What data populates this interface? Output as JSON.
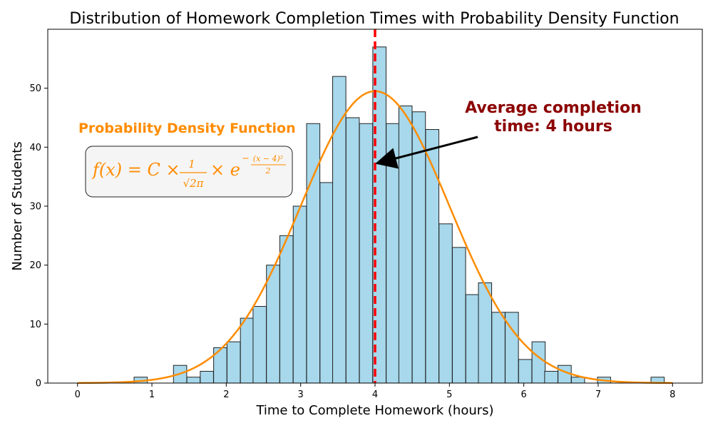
{
  "chart_data": {
    "type": "bar",
    "title": "Distribution of Homework Completion Times with Probability Density Function",
    "xlabel": "Time to Complete Homework (hours)",
    "ylabel": "Number of Students",
    "xlim": [
      -0.4,
      8.4
    ],
    "ylim": [
      0,
      60
    ],
    "xticks": [
      0,
      1,
      2,
      3,
      4,
      5,
      6,
      7,
      8
    ],
    "yticks": [
      0,
      10,
      20,
      30,
      40,
      50
    ],
    "bin_width": 0.178,
    "bins": [
      {
        "x0": 0.76,
        "count": 1
      },
      {
        "x0": 1.29,
        "count": 3
      },
      {
        "x0": 1.47,
        "count": 1
      },
      {
        "x0": 1.65,
        "count": 2
      },
      {
        "x0": 1.83,
        "count": 6
      },
      {
        "x0": 2.01,
        "count": 7
      },
      {
        "x0": 2.19,
        "count": 11
      },
      {
        "x0": 2.36,
        "count": 13
      },
      {
        "x0": 2.54,
        "count": 20
      },
      {
        "x0": 2.72,
        "count": 25
      },
      {
        "x0": 2.9,
        "count": 30
      },
      {
        "x0": 3.08,
        "count": 44
      },
      {
        "x0": 3.26,
        "count": 34
      },
      {
        "x0": 3.43,
        "count": 52
      },
      {
        "x0": 3.61,
        "count": 45
      },
      {
        "x0": 3.79,
        "count": 44
      },
      {
        "x0": 3.97,
        "count": 57
      },
      {
        "x0": 4.15,
        "count": 44
      },
      {
        "x0": 4.32,
        "count": 47
      },
      {
        "x0": 4.5,
        "count": 46
      },
      {
        "x0": 4.68,
        "count": 43
      },
      {
        "x0": 4.86,
        "count": 27
      },
      {
        "x0": 5.04,
        "count": 23
      },
      {
        "x0": 5.22,
        "count": 15
      },
      {
        "x0": 5.39,
        "count": 17
      },
      {
        "x0": 5.57,
        "count": 12
      },
      {
        "x0": 5.75,
        "count": 12
      },
      {
        "x0": 5.93,
        "count": 4
      },
      {
        "x0": 6.11,
        "count": 7
      },
      {
        "x0": 6.28,
        "count": 2
      },
      {
        "x0": 6.46,
        "count": 3
      },
      {
        "x0": 6.64,
        "count": 1
      },
      {
        "x0": 6.99,
        "count": 1
      },
      {
        "x0": 7.71,
        "count": 1
      }
    ],
    "pdf_curve": {
      "name": "Probability Density Function",
      "x_range": [
        0,
        8
      ],
      "mean": 4,
      "sd": 1,
      "peak": 49.5
    },
    "mean_line": {
      "x": 4
    },
    "colors": {
      "bar_fill": "#a7d8eb",
      "bar_edge": "#222222",
      "pdf_line": "#ff8c00",
      "mean_line": "#ff0000",
      "annotation": "#8b0000",
      "formula_box_bg": "#f5f5f5"
    },
    "annotations": {
      "pdf_label": "Probability Density Function",
      "average_line1": "Average completion",
      "average_line2": "time: 4 hours"
    },
    "formula": {
      "lhs": "f(x) = C ×",
      "frac_num": "1",
      "frac_den": "√2π",
      "times": "× e",
      "exp_minus": "−",
      "exp_num": "(x − 4)²",
      "exp_den": "2"
    }
  }
}
